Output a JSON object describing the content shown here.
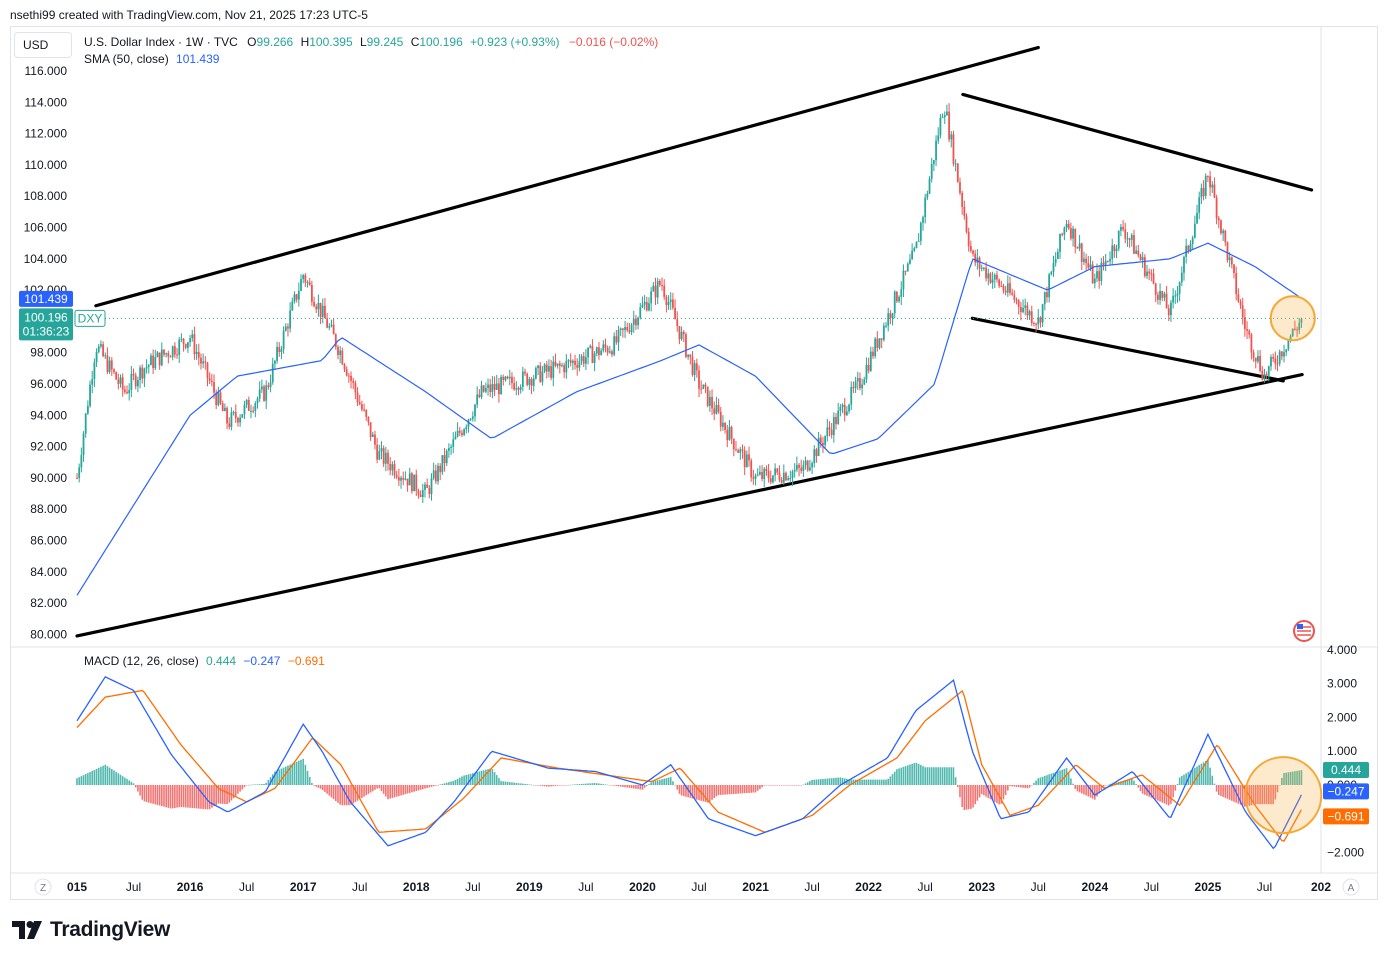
{
  "header": {
    "creator_line": "nsethi99 created with TradingView.com, Nov 21, 2025 17:23 UTC-5",
    "currency_button": "USD",
    "instrument": "U.S. Dollar Index · 1W · TVC",
    "ohlc": {
      "o_label": "O",
      "o": "99.266",
      "h_label": "H",
      "h": "100.395",
      "l_label": "L",
      "l": "99.245",
      "c_label": "C",
      "c": "100.196",
      "change": "+0.923 (+0.93%)",
      "extra_change": "−0.016 (−0.02%)"
    },
    "sma_label": "SMA (50, close)",
    "sma_value": "101.439"
  },
  "price_axis": {
    "ticks": [
      "116.000",
      "114.000",
      "112.000",
      "110.000",
      "108.000",
      "106.000",
      "104.000",
      "102.000",
      "100.000",
      "98.000",
      "96.000",
      "94.000",
      "92.000",
      "90.000",
      "88.000",
      "86.000",
      "84.000",
      "82.000",
      "80.000"
    ],
    "sma_badge": "101.439",
    "price_badge": "100.196",
    "countdown": "01:36:23",
    "symbol_tag": "DXY"
  },
  "macd_pane": {
    "label": "MACD (12, 26, close)",
    "hist_value": "0.444",
    "macd_value": "−0.247",
    "signal_value": "−0.691",
    "ticks": [
      "4.000",
      "3.000",
      "2.000",
      "1.000",
      "0.000",
      "−1.000",
      "−2.000"
    ],
    "badges": [
      "0.444",
      "−0.247",
      "−0.691"
    ]
  },
  "time_axis": {
    "labels": [
      "015",
      "Jul",
      "2016",
      "Jul",
      "2017",
      "Jul",
      "2018",
      "Jul",
      "2019",
      "Jul",
      "2020",
      "Jul",
      "2021",
      "Jul",
      "2022",
      "Jul",
      "2023",
      "Jul",
      "2024",
      "Jul",
      "2025",
      "Jul",
      "202"
    ],
    "left_button": "Z",
    "right_button": "A"
  },
  "footer": {
    "brand": "TradingView"
  },
  "colors": {
    "up": "#26a69a",
    "down": "#ef5350",
    "sma": "#2962ff",
    "macd": "#2962ff",
    "signal": "#ff6d00",
    "highlight": "#f7a833",
    "trendline": "#000000"
  },
  "chart_data": [
    {
      "type": "candlestick",
      "title": "U.S. Dollar Index · 1W · TVC",
      "x_range": [
        "2015-01",
        "2025-11"
      ],
      "ylim": [
        80,
        116
      ],
      "price_path": [
        [
          "2015-01",
          90.0
        ],
        [
          "2015-03",
          98.5
        ],
        [
          "2015-06",
          95.5
        ],
        [
          "2015-08",
          97.0
        ],
        [
          "2016-01",
          99.0
        ],
        [
          "2016-05",
          93.5
        ],
        [
          "2016-09",
          95.5
        ],
        [
          "2017-01",
          103.0
        ],
        [
          "2017-05",
          98.0
        ],
        [
          "2017-09",
          91.5
        ],
        [
          "2018-02",
          89.0
        ],
        [
          "2018-08",
          95.5
        ],
        [
          "2019-04",
          97.0
        ],
        [
          "2019-10",
          98.5
        ],
        [
          "2020-03",
          102.5
        ],
        [
          "2020-07",
          96.0
        ],
        [
          "2021-01",
          90.0
        ],
        [
          "2021-06",
          90.5
        ],
        [
          "2021-12",
          96.0
        ],
        [
          "2022-06",
          104.5
        ],
        [
          "2022-09",
          114.0
        ],
        [
          "2022-12",
          104.0
        ],
        [
          "2023-07",
          100.0
        ],
        [
          "2023-10",
          106.5
        ],
        [
          "2024-01",
          102.5
        ],
        [
          "2024-04",
          106.0
        ],
        [
          "2024-09",
          100.5
        ],
        [
          "2025-01",
          109.5
        ],
        [
          "2025-05",
          99.5
        ],
        [
          "2025-07",
          96.5
        ],
        [
          "2025-11",
          100.196
        ]
      ],
      "sma_50_path": [
        [
          "2015-01",
          82.5
        ],
        [
          "2016-01",
          94.0
        ],
        [
          "2016-06",
          96.5
        ],
        [
          "2017-03",
          97.5
        ],
        [
          "2017-05",
          99.0
        ],
        [
          "2018-02",
          95.5
        ],
        [
          "2018-09",
          92.5
        ],
        [
          "2019-06",
          95.5
        ],
        [
          "2020-03",
          97.5
        ],
        [
          "2020-07",
          98.5
        ],
        [
          "2021-01",
          96.5
        ],
        [
          "2021-09",
          91.5
        ],
        [
          "2022-02",
          92.5
        ],
        [
          "2022-08",
          96.0
        ],
        [
          "2022-12",
          104.0
        ],
        [
          "2023-08",
          102.0
        ],
        [
          "2024-01",
          103.5
        ],
        [
          "2024-09",
          104.0
        ],
        [
          "2025-01",
          105.0
        ],
        [
          "2025-06",
          103.5
        ],
        [
          "2025-11",
          101.439
        ]
      ],
      "trendlines": [
        {
          "from": [
            "2015-01",
            79.9
          ],
          "to": [
            "2025-11",
            96.6
          ]
        },
        {
          "from": [
            "2015-03",
            101.0
          ],
          "to": [
            "2023-07",
            117.5
          ]
        },
        {
          "from": [
            "2022-11",
            114.5
          ],
          "to": [
            "2025-12",
            108.4
          ]
        },
        {
          "from": [
            "2022-12",
            100.2
          ],
          "to": [
            "2025-09",
            96.2
          ]
        }
      ],
      "highlight": {
        "at": [
          "2025-10",
          100.2
        ]
      }
    },
    {
      "type": "line",
      "title": "MACD (12, 26, close)",
      "ylim": [
        -2.2,
        4.2
      ],
      "series": [
        {
          "name": "MACD",
          "points": [
            [
              "2015-01",
              1.9
            ],
            [
              "2015-04",
              3.2
            ],
            [
              "2015-07",
              2.8
            ],
            [
              "2015-11",
              0.9
            ],
            [
              "2016-03",
              -0.5
            ],
            [
              "2016-05",
              -0.8
            ],
            [
              "2016-09",
              -0.2
            ],
            [
              "2017-01",
              1.8
            ],
            [
              "2017-03",
              1.0
            ],
            [
              "2017-06",
              -0.5
            ],
            [
              "2017-10",
              -1.8
            ],
            [
              "2018-02",
              -1.4
            ],
            [
              "2018-05",
              -0.5
            ],
            [
              "2018-09",
              1.0
            ],
            [
              "2019-03",
              0.5
            ],
            [
              "2019-08",
              0.4
            ],
            [
              "2020-01",
              0.0
            ],
            [
              "2020-04",
              0.6
            ],
            [
              "2020-08",
              -1.0
            ],
            [
              "2021-01",
              -1.5
            ],
            [
              "2021-06",
              -1.0
            ],
            [
              "2021-10",
              0.0
            ],
            [
              "2022-03",
              0.8
            ],
            [
              "2022-06",
              2.2
            ],
            [
              "2022-10",
              3.1
            ],
            [
              "2022-12",
              1.0
            ],
            [
              "2023-03",
              -1.0
            ],
            [
              "2023-06",
              -0.8
            ],
            [
              "2023-10",
              0.8
            ],
            [
              "2024-01",
              -0.3
            ],
            [
              "2024-05",
              0.4
            ],
            [
              "2024-09",
              -1.0
            ],
            [
              "2025-01",
              1.5
            ],
            [
              "2025-05",
              -0.8
            ],
            [
              "2025-08",
              -1.9
            ],
            [
              "2025-11",
              -0.247
            ]
          ]
        },
        {
          "name": "Signal",
          "points": [
            [
              "2015-01",
              1.7
            ],
            [
              "2015-04",
              2.6
            ],
            [
              "2015-08",
              2.8
            ],
            [
              "2015-12",
              1.2
            ],
            [
              "2016-04",
              -0.1
            ],
            [
              "2016-07",
              -0.5
            ],
            [
              "2016-10",
              -0.1
            ],
            [
              "2017-02",
              1.4
            ],
            [
              "2017-05",
              0.6
            ],
            [
              "2017-09",
              -1.4
            ],
            [
              "2018-02",
              -1.3
            ],
            [
              "2018-06",
              -0.4
            ],
            [
              "2018-10",
              0.8
            ],
            [
              "2019-04",
              0.5
            ],
            [
              "2019-09",
              0.3
            ],
            [
              "2020-02",
              0.1
            ],
            [
              "2020-05",
              0.5
            ],
            [
              "2020-09",
              -0.8
            ],
            [
              "2021-02",
              -1.4
            ],
            [
              "2021-07",
              -0.9
            ],
            [
              "2021-11",
              0.0
            ],
            [
              "2022-04",
              0.8
            ],
            [
              "2022-07",
              1.9
            ],
            [
              "2022-11",
              2.8
            ],
            [
              "2023-01",
              0.6
            ],
            [
              "2023-04",
              -0.9
            ],
            [
              "2023-07",
              -0.6
            ],
            [
              "2023-11",
              0.6
            ],
            [
              "2024-02",
              -0.1
            ],
            [
              "2024-06",
              0.3
            ],
            [
              "2024-10",
              -0.6
            ],
            [
              "2025-02",
              1.2
            ],
            [
              "2025-06",
              -0.6
            ],
            [
              "2025-09",
              -1.7
            ],
            [
              "2025-11",
              -0.691
            ]
          ]
        }
      ],
      "histogram_last": 0.444
    }
  ]
}
